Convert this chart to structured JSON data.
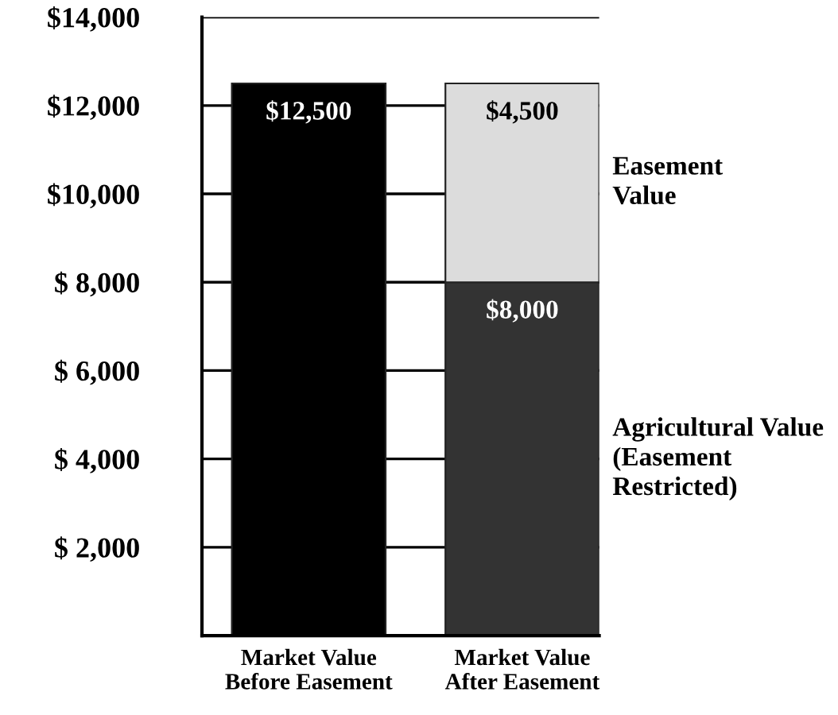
{
  "chart_data": {
    "type": "bar",
    "stacked": true,
    "categories": [
      "Market Value\nBefore Easement",
      "Market Value\nAfter Easement"
    ],
    "series": [
      {
        "color": "#000000",
        "values": [
          12500,
          null
        ],
        "value_labels": [
          "$12,500",
          null
        ]
      },
      {
        "name": "Agricultural Value\n(Easement\nRestricted)",
        "color": "#333333",
        "values": [
          null,
          8000
        ],
        "value_labels": [
          null,
          "$8,000"
        ]
      },
      {
        "name": "Easement\nValue",
        "color": "#dcdcdc",
        "values": [
          null,
          4500
        ],
        "value_labels": [
          null,
          "$4,500"
        ]
      }
    ],
    "ylim": [
      0,
      14000
    ],
    "yticks": [
      {
        "value": 2000,
        "label": "$ 2,000"
      },
      {
        "value": 4000,
        "label": "$ 4,000"
      },
      {
        "value": 6000,
        "label": "$ 6,000"
      },
      {
        "value": 8000,
        "label": "$ 8,000"
      },
      {
        "value": 10000,
        "label": "$10,000"
      },
      {
        "value": 12000,
        "label": "$12,000"
      },
      {
        "value": 14000,
        "label": "$14,000"
      }
    ],
    "grid": "y",
    "legend": false
  }
}
